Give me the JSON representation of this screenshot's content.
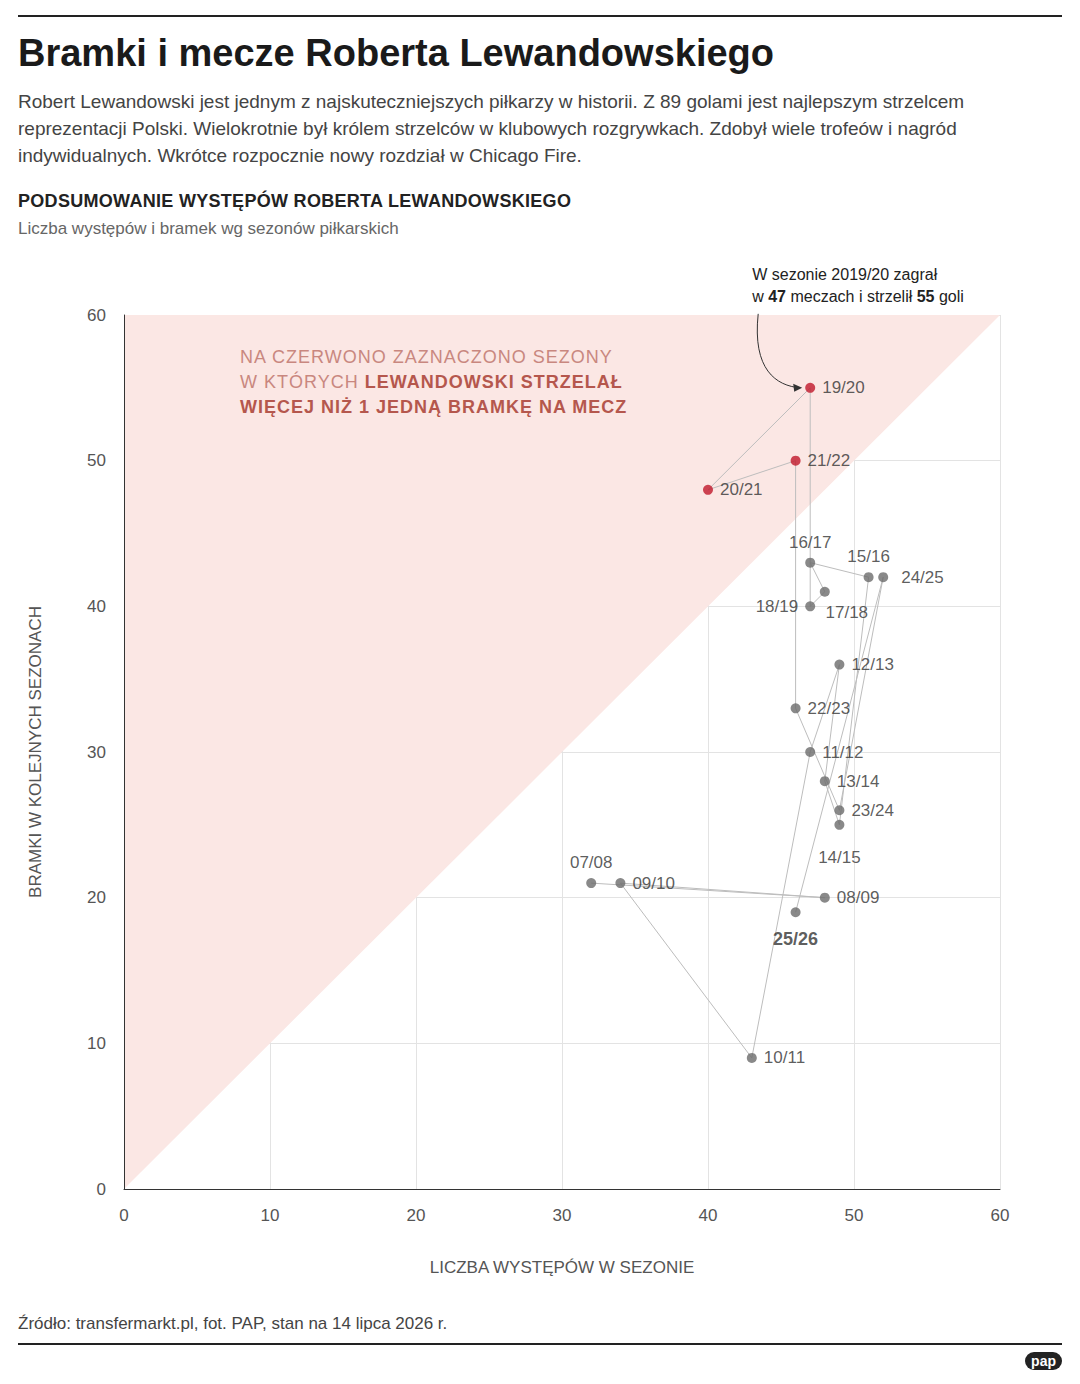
{
  "header": {
    "title": "Bramki i mecze Roberta Lewandowskiego",
    "intro": "Robert Lewandowski jest jednym z najskuteczniejszych piłkarzy w historii. Z 89 golami jest najlepszym strzelcem reprezentacji Polski. Wielokrotnie był królem strzelców w klubowych rozgrywkach. Zdobył wiele trofeów i nagród indywidualnych. Wkrótce rozpocznie nowy rozdział w Chicago Fire.",
    "section_title": "PODSUMOWANIE WYSTĘPÓW ROBERTA LEWANDOWSKIEGO",
    "section_subtitle": "Liczba występów i bramek wg sezonów piłkarskich"
  },
  "chart_data": {
    "type": "scatter",
    "line_style": "solid",
    "xlabel": "LICZBA WYSTĘPÓW W SEZONIE",
    "ylabel": "BRAMKI W KOLEJNYCH SEZONACH",
    "labels": [
      "07/08",
      "08/09",
      "09/10",
      "10/11",
      "11/12",
      "12/13",
      "13/14",
      "14/15",
      "15/16",
      "16/17",
      "17/18",
      "18/19",
      "19/20",
      "20/21",
      "21/22",
      "22/23",
      "23/24",
      "24/25",
      "25/26"
    ],
    "x": [
      32,
      48,
      34,
      43,
      47,
      49,
      48,
      49,
      51,
      47,
      48,
      47,
      47,
      40,
      46,
      46,
      49,
      52,
      46
    ],
    "values": [
      21,
      20,
      21,
      9,
      30,
      36,
      28,
      25,
      42,
      43,
      41,
      40,
      55,
      48,
      50,
      33,
      26,
      42,
      19
    ],
    "colors": [
      "#6b6b6b",
      "#6b6b6b",
      "#6b6b6b",
      "#6b6b6b",
      "#6b6b6b",
      "#6b6b6b",
      "#6b6b6b",
      "#6b6b6b",
      "#6b6b6b",
      "#6b6b6b",
      "#6b6b6b",
      "#6b6b6b",
      "#c0182a",
      "#c0182a",
      "#c0182a",
      "#6b6b6b",
      "#6b6b6b",
      "#6b6b6b",
      "#6b6b6b"
    ],
    "xlim": [
      0,
      60
    ],
    "ylim": [
      0,
      60
    ],
    "xticks": [
      0,
      10,
      20,
      30,
      40,
      50,
      60
    ],
    "yticks": [
      0,
      10,
      20,
      30,
      40,
      50,
      60
    ],
    "grid": true,
    "shaded_region": {
      "above_slope": 1,
      "color": "#fbe7e4"
    },
    "region_note": [
      [
        {
          "text": "NA CZERWONO ZAZNACZONO SEZONY",
          "bold": false
        }
      ],
      [
        {
          "text": "W KTÓRYCH ",
          "bold": false
        },
        {
          "text": "LEWANDOWSKI STRZELAŁ",
          "bold": true
        }
      ],
      [
        {
          "text": "WIĘCEJ NIŻ 1 JEDNĄ BRAMKĘ NA MECZ",
          "bold": true
        }
      ]
    ],
    "callout": [
      [
        {
          "text": "W sezonie 2019/20 zagrał",
          "bold": false
        }
      ],
      [
        {
          "text": "w ",
          "bold": false
        },
        {
          "text": "47",
          "bold": true
        },
        {
          "text": " meczach i strzelił ",
          "bold": false
        },
        {
          "text": "55",
          "bold": true
        },
        {
          "text": " goli",
          "bold": false
        }
      ]
    ]
  },
  "footer": {
    "source": "Źródło: transfermarkt.pl, fot. PAP, stan na 14 lipca 2026 r.",
    "logo": "pap"
  }
}
